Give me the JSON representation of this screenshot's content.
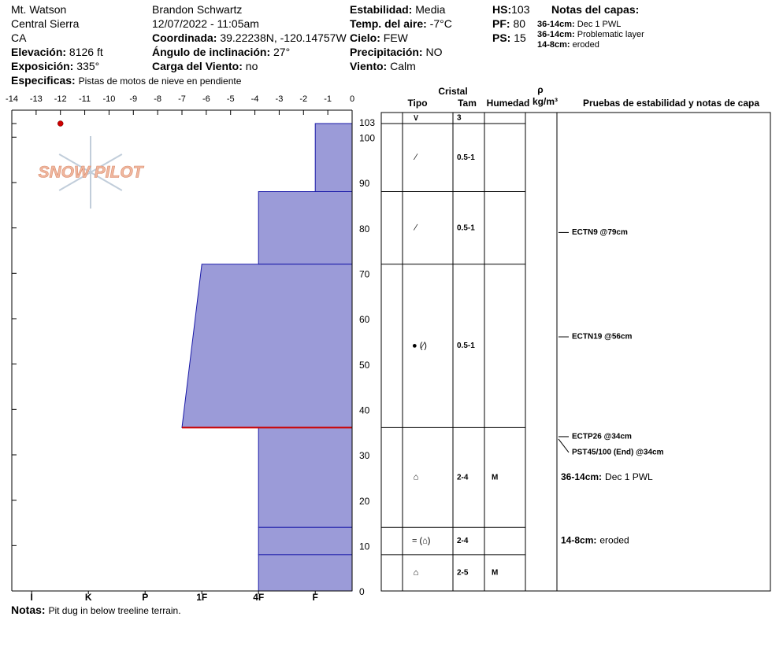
{
  "header": {
    "location": "Mt. Watson",
    "range": "Central Sierra",
    "state": "CA",
    "elevation": {
      "label": "Elevación:",
      "value": "8126 ft"
    },
    "aspect": {
      "label": "Exposición:",
      "value": "335°"
    },
    "specifics": {
      "label": "Especificas:",
      "value": "Pistas de motos de nieve en pendiente"
    },
    "observer": "Brandon Schwartz",
    "datetime": "12/07/2022 - 11:05am",
    "coordinates": {
      "label": "Coordinada:",
      "value": "39.22238N, -120.14757W"
    },
    "slope": {
      "label": "Ángulo de inclinación:",
      "value": "27°"
    },
    "wind_loading": {
      "label": "Carga del Viento:",
      "value": "no"
    },
    "stability": {
      "label": "Estabilidad:",
      "value": "Media"
    },
    "air_temp": {
      "label": "Temp. del aire:",
      "value": "-7°C"
    },
    "sky": {
      "label": "Cielo:",
      "value": "FEW"
    },
    "precip": {
      "label": "Precipitación:",
      "value": "NO"
    },
    "wind": {
      "label": "Viento:",
      "value": "Calm"
    },
    "hs": {
      "label": "HS:",
      "value": "103"
    },
    "pf": {
      "label": "PF:",
      "value": "80"
    },
    "ps": {
      "label": "PS:",
      "value": "15"
    },
    "layer_notes_title": "Notas del capas:",
    "layer_notes": [
      {
        "range": "36-14cm:",
        "text": "Dec 1 PWL"
      },
      {
        "range": "36-14cm:",
        "text": "Problematic layer"
      },
      {
        "range": "14-8cm:",
        "text": "eroded"
      }
    ]
  },
  "logo": "SNOW PILOT",
  "chart_data": {
    "type": "snow-profile",
    "xlim": [
      -14,
      0
    ],
    "xticks": [
      -14,
      -13,
      -12,
      -11,
      -10,
      -9,
      -8,
      -7,
      -6,
      -5,
      -4,
      -3,
      -2,
      -1,
      0
    ],
    "hardness_lim": [
      6.35,
      0.35
    ],
    "hardness_ticks": [
      {
        "value": 6,
        "label": "I"
      },
      {
        "value": 5,
        "label": "K"
      },
      {
        "value": 4,
        "label": "P"
      },
      {
        "value": 3,
        "label": "1F"
      },
      {
        "value": 2,
        "label": "4F"
      },
      {
        "value": 1,
        "label": "F"
      }
    ],
    "ylim": [
      0,
      103
    ],
    "yticks": [
      0,
      10,
      20,
      30,
      40,
      50,
      60,
      70,
      80,
      90,
      100,
      103
    ],
    "color": "#9b9bd8",
    "edge_color": "#1a1aa8",
    "layers": [
      {
        "top": 103,
        "bottom": 88,
        "hardness_top": 1,
        "hardness_bottom": 1,
        "grain": "∕",
        "size": "0.5-1"
      },
      {
        "top": 88,
        "bottom": 72,
        "hardness_top": 2,
        "hardness_bottom": 2,
        "grain": "∕",
        "size": "0.5-1"
      },
      {
        "top": 72,
        "bottom": 36,
        "hardness_top": 3,
        "hardness_bottom": 3.35,
        "grain": "● (∕)",
        "size": "0.5-1"
      },
      {
        "top": 36,
        "bottom": 14,
        "hardness_top": 2,
        "hardness_bottom": 2,
        "grain": "⌂",
        "size": "2-4",
        "moisture": "M"
      },
      {
        "top": 14,
        "bottom": 8,
        "hardness_top": 2,
        "hardness_bottom": 2,
        "grain": "= (⌂)",
        "size": "2-4"
      },
      {
        "top": 8,
        "bottom": 0,
        "hardness_top": 2,
        "hardness_bottom": 2,
        "grain": "⌂",
        "size": "2-5",
        "moisture": "M"
      }
    ],
    "surface": {
      "grain": "∨",
      "size": "3"
    },
    "problem_layer": {
      "depth": 36,
      "color": "#cc0000"
    },
    "temperatures": [
      {
        "depth": 103,
        "temp": -12
      }
    ],
    "temp_color": "#cc0000",
    "table_headers": {
      "crystal": "Cristal",
      "type": "Tipo",
      "size": "Tam",
      "moisture": "Humedad",
      "density": "ρ",
      "density_unit": "kg/m³",
      "tests": "Pruebas de estabilidad y notas de capa"
    },
    "tests": [
      {
        "label": "ECTN9 @79cm",
        "depth": 79
      },
      {
        "label": "ECTN19 @56cm",
        "depth": 56
      },
      {
        "label": "ECTP26 @34cm",
        "depth": 34
      },
      {
        "label": "PST45/100 (End) @34cm",
        "depth": 34
      }
    ],
    "notes": [
      {
        "range": "36-14cm:",
        "text": "Dec 1 PWL",
        "top": 36,
        "bottom": 14
      },
      {
        "range": "14-8cm:",
        "text": "eroded",
        "top": 14,
        "bottom": 8
      }
    ]
  },
  "footer": {
    "label": "Notas:",
    "value": "Pit dug in below treeline terrain."
  }
}
